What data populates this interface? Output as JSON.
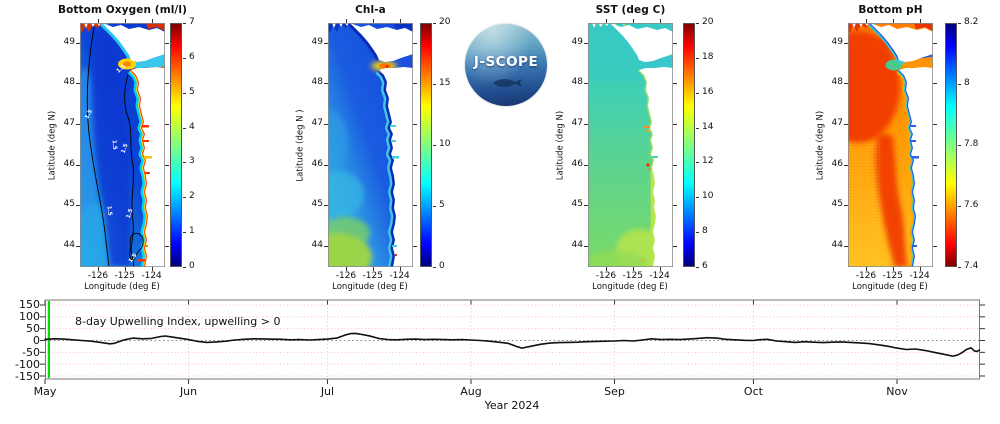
{
  "figure": {
    "background": "#ffffff"
  },
  "logo": {
    "text": "J-SCOPE"
  },
  "map_axes": {
    "lat_label_default": "Latitude (deg N)",
    "lat_ticks": [
      "49",
      "48",
      "47",
      "46",
      "45",
      "44"
    ],
    "lat_values": [
      49,
      48,
      47,
      46,
      45,
      44
    ],
    "lon_ticks": [
      "-126",
      "-125",
      "-124"
    ],
    "lon_values": [
      -126,
      -125,
      -124
    ]
  },
  "panels": [
    {
      "id": "bottom-oxygen",
      "title": "Bottom Oxygen (ml/l)",
      "ylabel": "Latitude (deg N)",
      "xlabel": "Longitude (deg E)",
      "contour_label": "1.5",
      "colorbar": {
        "min": 0,
        "max": 7,
        "reversed": false,
        "tick_values": [
          7,
          6,
          5,
          4,
          3,
          2,
          1,
          0
        ],
        "tick_labels": [
          "7",
          "6",
          "5",
          "4",
          "3",
          "2",
          "1",
          "0"
        ]
      }
    },
    {
      "id": "chl-a",
      "title": "Chl-a",
      "ylabel": "Latitude (deg N )",
      "xlabel": "Longitude (deg E)",
      "colorbar": {
        "min": 0,
        "max": 20,
        "reversed": false,
        "tick_values": [
          20,
          15,
          10,
          5,
          0
        ],
        "tick_labels": [
          "20",
          "15",
          "10",
          "5",
          "0"
        ]
      }
    },
    {
      "id": "sst",
      "title": "SST (deg C)",
      "ylabel": "Latitude (deg N)",
      "xlabel": "Longitude (deg E)",
      "colorbar": {
        "min": 6,
        "max": 20,
        "reversed": false,
        "tick_values": [
          20,
          18,
          16,
          14,
          12,
          10,
          8,
          6
        ],
        "tick_labels": [
          "20",
          "18",
          "16",
          "14",
          "12",
          "10",
          "8",
          "6"
        ]
      }
    },
    {
      "id": "bottom-ph",
      "title": "Bottom pH",
      "ylabel": "Latitude (deg N)",
      "xlabel": "Longitude (deg E)",
      "colorbar": {
        "min": 7.4,
        "max": 8.2,
        "reversed": true,
        "tick_values": [
          8.2,
          8,
          7.8,
          7.6,
          7.4
        ],
        "tick_labels": [
          "8.2",
          "8",
          "7.8",
          "7.6",
          "7.4"
        ]
      }
    }
  ],
  "timeseries": {
    "annotation": "8-day Upwelling Index, upwelling > 0",
    "xlabel": "Year 2024",
    "y_tick_labels": [
      "150",
      "100",
      "50",
      "0",
      "-50",
      "-100",
      "-150"
    ],
    "y_tick_values": [
      150,
      100,
      50,
      0,
      -50,
      -100,
      -150
    ],
    "month_labels": [
      "May",
      "Jun",
      "Jul",
      "Aug",
      "Sep",
      "Oct",
      "Nov"
    ],
    "month_start_days": [
      0,
      31,
      61,
      92,
      123,
      153,
      184
    ]
  },
  "chart_data": {
    "type": "line",
    "title": "8-day Upwelling Index, upwelling > 0",
    "xlabel": "Year 2024",
    "x_unit": "days since May 1",
    "x_range_days": [
      0,
      202
    ],
    "ylim": [
      -150,
      150
    ],
    "grid": true,
    "series": [
      {
        "name": "8-day Upwelling Index",
        "color": "#111111",
        "points": [
          [
            0,
            5
          ],
          [
            2,
            7
          ],
          [
            4,
            6
          ],
          [
            6,
            3
          ],
          [
            8,
            0
          ],
          [
            10,
            -3
          ],
          [
            12,
            -8
          ],
          [
            14,
            -14
          ],
          [
            15,
            -12
          ],
          [
            17,
            2
          ],
          [
            19,
            10
          ],
          [
            21,
            7
          ],
          [
            23,
            9
          ],
          [
            25,
            17
          ],
          [
            26,
            19
          ],
          [
            28,
            13
          ],
          [
            30,
            7
          ],
          [
            31,
            4
          ],
          [
            33,
            -4
          ],
          [
            35,
            -8
          ],
          [
            37,
            -6
          ],
          [
            39,
            -3
          ],
          [
            41,
            2
          ],
          [
            43,
            5
          ],
          [
            45,
            7
          ],
          [
            48,
            6
          ],
          [
            51,
            5
          ],
          [
            53,
            3
          ],
          [
            55,
            4
          ],
          [
            57,
            2
          ],
          [
            59,
            4
          ],
          [
            61,
            6
          ],
          [
            63,
            10
          ],
          [
            65,
            24
          ],
          [
            66,
            29
          ],
          [
            67,
            30
          ],
          [
            68,
            27
          ],
          [
            70,
            20
          ],
          [
            72,
            9
          ],
          [
            74,
            4
          ],
          [
            76,
            3
          ],
          [
            78,
            5
          ],
          [
            80,
            6
          ],
          [
            82,
            4
          ],
          [
            84,
            5
          ],
          [
            86,
            4
          ],
          [
            88,
            3
          ],
          [
            90,
            4
          ],
          [
            92,
            2
          ],
          [
            94,
            0
          ],
          [
            96,
            -3
          ],
          [
            98,
            -7
          ],
          [
            100,
            -12
          ],
          [
            102,
            -26
          ],
          [
            103,
            -32
          ],
          [
            105,
            -24
          ],
          [
            107,
            -16
          ],
          [
            109,
            -11
          ],
          [
            111,
            -9
          ],
          [
            113,
            -8
          ],
          [
            115,
            -7
          ],
          [
            117,
            -5
          ],
          [
            119,
            -4
          ],
          [
            121,
            -3
          ],
          [
            123,
            -2
          ],
          [
            125,
            0
          ],
          [
            127,
            -2
          ],
          [
            129,
            2
          ],
          [
            131,
            7
          ],
          [
            133,
            4
          ],
          [
            135,
            5
          ],
          [
            137,
            4
          ],
          [
            139,
            6
          ],
          [
            141,
            9
          ],
          [
            143,
            12
          ],
          [
            145,
            10
          ],
          [
            147,
            5
          ],
          [
            149,
            3
          ],
          [
            151,
            1
          ],
          [
            153,
            0
          ],
          [
            154,
            3
          ],
          [
            156,
            5
          ],
          [
            158,
            -2
          ],
          [
            160,
            -5
          ],
          [
            162,
            -8
          ],
          [
            164,
            -5
          ],
          [
            166,
            -7
          ],
          [
            168,
            -9
          ],
          [
            170,
            -7
          ],
          [
            172,
            -6
          ],
          [
            174,
            -8
          ],
          [
            176,
            -10
          ],
          [
            178,
            -13
          ],
          [
            180,
            -18
          ],
          [
            182,
            -24
          ],
          [
            184,
            -32
          ],
          [
            186,
            -38
          ],
          [
            188,
            -36
          ],
          [
            190,
            -42
          ],
          [
            192,
            -50
          ],
          [
            194,
            -58
          ],
          [
            196,
            -66
          ],
          [
            197,
            -62
          ],
          [
            198,
            -52
          ],
          [
            199,
            -38
          ],
          [
            200,
            -31
          ],
          [
            200.7,
            -44
          ],
          [
            201.3,
            -46
          ],
          [
            201.8,
            -40
          ]
        ]
      }
    ],
    "markers": [
      {
        "type": "vline",
        "x_day": 0.4,
        "color": "#00dd00",
        "name": "forecast-start-marker"
      }
    ]
  },
  "colors": {
    "land": "#ffffff",
    "grid_pink": "#ffaaaa",
    "month_grid": "#e7bcbc",
    "zero_line": "#888888",
    "frame": "#777777",
    "marker_green": "#00dd00",
    "jet": [
      "#00007f",
      "#0000ff",
      "#00ffff",
      "#80ff80",
      "#ffff00",
      "#ff0000",
      "#7f0000"
    ],
    "jet_positions": [
      0,
      0.09,
      0.34,
      0.5,
      0.66,
      0.91,
      1
    ]
  }
}
